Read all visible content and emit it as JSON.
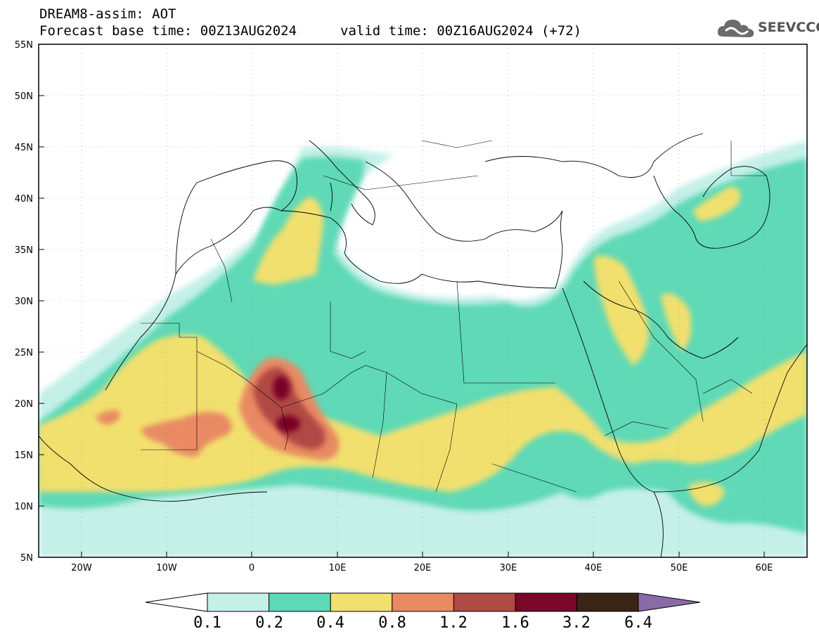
{
  "header": {
    "line1": "DREAM8-assim: AOT",
    "line2": "Forecast base time: 00Z13AUG2024",
    "valid": "valid time: 00Z16AUG2024 (+72)"
  },
  "logo": {
    "text": "SEEVCCC",
    "icon": "cloud-icon"
  },
  "map": {
    "lon_range": [
      -25,
      65
    ],
    "lat_range": [
      5,
      55
    ],
    "lat_ticks": [
      "55N",
      "50N",
      "45N",
      "40N",
      "35N",
      "30N",
      "25N",
      "20N",
      "15N",
      "10N",
      "5N"
    ],
    "lon_ticks": [
      "20W",
      "10W",
      "0",
      "10E",
      "20E",
      "30E",
      "40E",
      "50E",
      "60E"
    ]
  },
  "colorbar": {
    "labels": [
      "0.1",
      "0.2",
      "0.4",
      "0.8",
      "1.2",
      "1.6",
      "3.2",
      "6.4"
    ],
    "colors": [
      "#c4f0e8",
      "#5ed9b6",
      "#f2e06e",
      "#e98a63",
      "#b04a44",
      "#7a0628",
      "#3a2415",
      "#8b6aa8"
    ]
  }
}
